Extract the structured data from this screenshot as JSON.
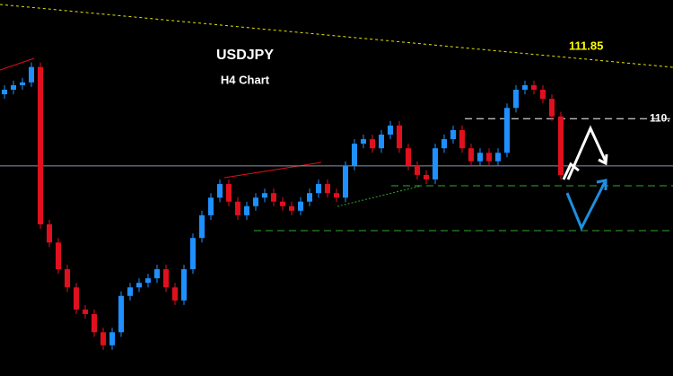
{
  "chart_data": {
    "type": "candlestick",
    "title": "USDJPY",
    "subtitle": "H4 Chart",
    "ylim": [
      106.38,
      113.0
    ],
    "up_color": "#1e90ff",
    "down_color": "#e0101e",
    "open": [
      111.34,
      111.42,
      111.5,
      111.55,
      111.82,
      109.05,
      108.73,
      108.26,
      107.94,
      107.55,
      107.47,
      107.15,
      106.92,
      107.15,
      107.79,
      107.94,
      108.02,
      108.1,
      108.26,
      107.94,
      107.71,
      108.26,
      108.81,
      109.21,
      109.52,
      109.76,
      109.45,
      109.21,
      109.37,
      109.52,
      109.6,
      109.45,
      109.37,
      109.29,
      109.45,
      109.6,
      109.76,
      109.6,
      109.52,
      110.08,
      110.47,
      110.55,
      110.39,
      110.63,
      110.79,
      110.39,
      110.08,
      109.92,
      109.84,
      110.39,
      110.55,
      110.71,
      110.39,
      110.16,
      110.31,
      110.16,
      110.31,
      111.1,
      111.42,
      111.5,
      111.42,
      111.26,
      110.95
    ],
    "high": [
      111.5,
      111.58,
      111.63,
      111.9,
      111.9,
      109.13,
      108.81,
      108.34,
      108.02,
      107.63,
      107.55,
      107.23,
      107.23,
      107.87,
      108.02,
      108.1,
      108.18,
      108.34,
      108.34,
      108.02,
      108.34,
      108.89,
      109.29,
      109.6,
      109.84,
      109.84,
      109.53,
      109.45,
      109.6,
      109.68,
      109.68,
      109.53,
      109.45,
      109.53,
      109.68,
      109.84,
      109.84,
      109.68,
      110.16,
      110.55,
      110.63,
      110.63,
      110.71,
      110.87,
      110.87,
      110.47,
      110.16,
      110.0,
      110.47,
      110.63,
      110.79,
      110.79,
      110.47,
      110.39,
      110.39,
      110.39,
      111.18,
      111.5,
      111.58,
      111.58,
      111.5,
      111.34,
      111.03
    ],
    "low": [
      111.26,
      111.34,
      111.42,
      111.47,
      108.97,
      108.65,
      108.18,
      107.86,
      107.47,
      107.39,
      107.07,
      106.84,
      106.84,
      107.07,
      107.71,
      107.86,
      107.94,
      108.02,
      107.86,
      107.63,
      107.63,
      108.18,
      108.73,
      109.13,
      109.44,
      109.37,
      109.13,
      109.13,
      109.29,
      109.44,
      109.37,
      109.29,
      109.21,
      109.21,
      109.37,
      109.52,
      109.52,
      109.44,
      109.44,
      110.0,
      110.39,
      110.31,
      110.31,
      110.55,
      110.31,
      110.0,
      109.84,
      109.76,
      109.76,
      110.31,
      110.47,
      110.31,
      110.08,
      110.08,
      110.08,
      110.08,
      110.23,
      111.02,
      111.34,
      111.34,
      111.18,
      110.87,
      109.84
    ],
    "close": [
      111.42,
      111.5,
      111.55,
      111.82,
      109.05,
      108.73,
      108.26,
      107.94,
      107.55,
      107.47,
      107.15,
      106.92,
      107.15,
      107.79,
      107.94,
      108.02,
      108.1,
      108.26,
      107.94,
      107.71,
      108.26,
      108.81,
      109.21,
      109.52,
      109.76,
      109.45,
      109.21,
      109.37,
      109.52,
      109.6,
      109.45,
      109.37,
      109.29,
      109.45,
      109.6,
      109.76,
      109.6,
      109.52,
      110.08,
      110.47,
      110.55,
      110.39,
      110.63,
      110.79,
      110.39,
      110.08,
      109.92,
      109.84,
      110.39,
      110.55,
      110.71,
      110.39,
      110.16,
      110.31,
      110.16,
      110.31,
      111.1,
      111.42,
      111.5,
      111.42,
      111.26,
      110.95,
      109.92
    ],
    "levels": [
      {
        "value": 110.91,
        "label": "110.",
        "color": "#ffffff"
      },
      {
        "value": 110.08,
        "color": "#8a93a6"
      },
      {
        "value": 109.73,
        "color": "#2fa82f"
      },
      {
        "value": 108.94,
        "color": "#2fa82f"
      }
    ],
    "trendline_label": "111.85"
  }
}
